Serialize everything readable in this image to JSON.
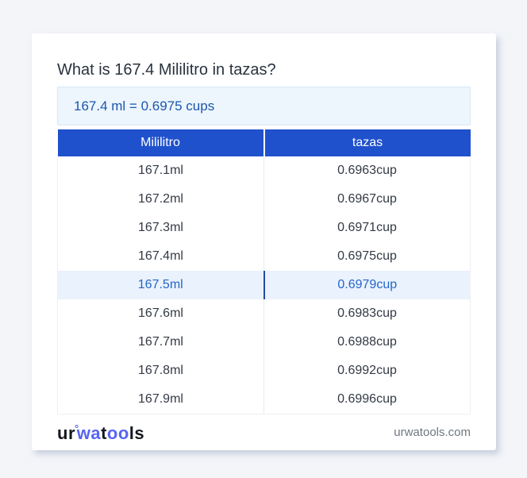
{
  "page": {
    "title": "What is 167.4 Mililitro in tazas?",
    "result": "167.4 ml = 0.6975 cups"
  },
  "table": {
    "headers": [
      "Mililitro",
      "tazas"
    ],
    "highlighted_row_index": 4,
    "rows": [
      {
        "ml": "167.1ml",
        "cup": "0.6963cup"
      },
      {
        "ml": "167.2ml",
        "cup": "0.6967cup"
      },
      {
        "ml": "167.3ml",
        "cup": "0.6971cup"
      },
      {
        "ml": "167.4ml",
        "cup": "0.6975cup"
      },
      {
        "ml": "167.5ml",
        "cup": "0.6979cup"
      },
      {
        "ml": "167.6ml",
        "cup": "0.6983cup"
      },
      {
        "ml": "167.7ml",
        "cup": "0.6988cup"
      },
      {
        "ml": "167.8ml",
        "cup": "0.6992cup"
      },
      {
        "ml": "167.9ml",
        "cup": "0.6996cup"
      }
    ]
  },
  "footer": {
    "logo": {
      "seg1": "ur",
      "degree": "°",
      "seg2": "wa",
      "seg3": "t",
      "seg4": "oo",
      "seg5": "ls"
    },
    "site": "urwatools.com"
  },
  "colors": {
    "header_bg": "#2051cd",
    "highlight_bg": "#e9f2fd",
    "highlight_text": "#2765c8",
    "result_bg": "#edf5fd",
    "result_text": "#1d57ad",
    "logo_blue": "#5864f2",
    "page_bg": "#f3f5f9"
  }
}
